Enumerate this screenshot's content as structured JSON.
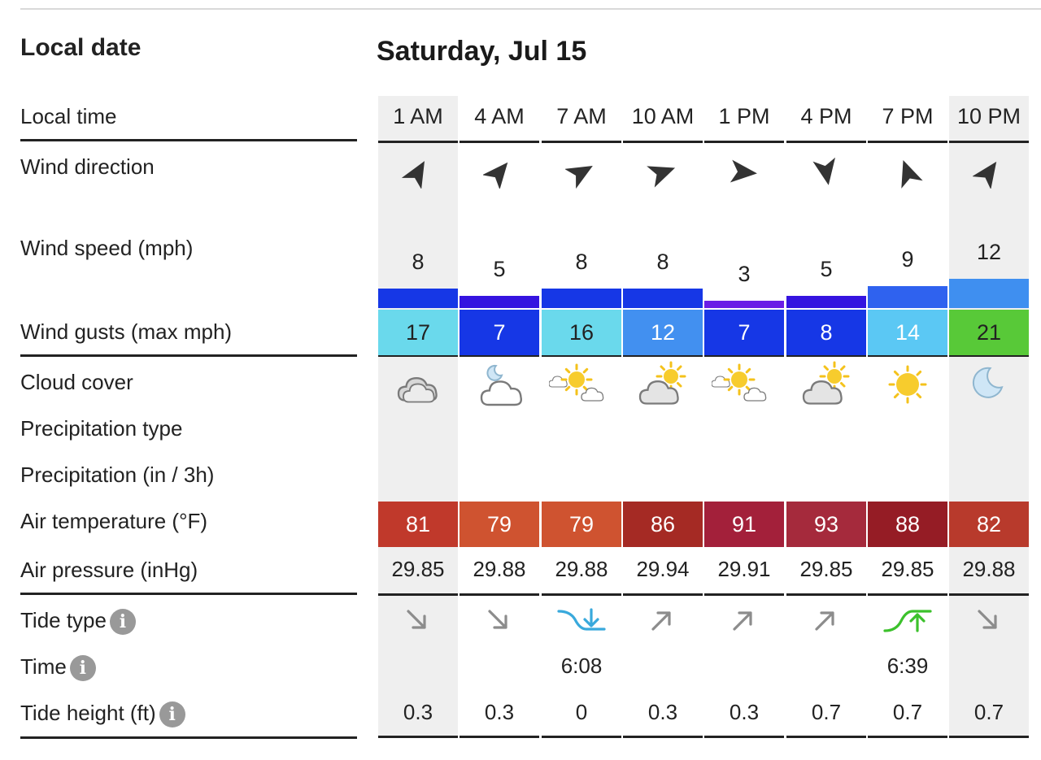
{
  "labels": {
    "local_date": "Local date",
    "local_time": "Local time",
    "wind_direction": "Wind direction",
    "wind_speed": "Wind speed (mph)",
    "wind_gusts": "Wind gusts (max mph)",
    "cloud_cover": "Cloud cover",
    "precipitation_type": "Precipitation type",
    "precipitation": "Precipitation (in / 3h)",
    "air_temperature": "Air temperature (°F)",
    "air_pressure": "Air pressure (inHg)",
    "tide_type": "Tide type",
    "tide_time": "Time",
    "tide_height": "Tide height (ft)"
  },
  "date": "Saturday, Jul 15",
  "columns": [
    {
      "time": "1 AM",
      "wind_dir_deg": 30,
      "wind_speed": "8",
      "gust": "17",
      "gust_color": "#6ad9ec",
      "cloud": "cloudy",
      "temp": "81",
      "temp_color": "#c0392b",
      "pressure": "29.85",
      "tide_type": "falling",
      "tide_time": "",
      "tide_height": "0.3",
      "shaded": true
    },
    {
      "time": "4 AM",
      "wind_dir_deg": 40,
      "wind_speed": "5",
      "gust": "7",
      "gust_color": "#1637e6",
      "cloud": "night-partly-cloudy",
      "temp": "79",
      "temp_color": "#cf5330",
      "pressure": "29.88",
      "tide_type": "falling",
      "tide_time": "",
      "tide_height": "0.3",
      "shaded": false
    },
    {
      "time": "7 AM",
      "wind_dir_deg": 60,
      "wind_speed": "8",
      "gust": "16",
      "gust_color": "#6ad9ec",
      "cloud": "mostly-sunny",
      "temp": "79",
      "temp_color": "#cf5330",
      "pressure": "29.88",
      "tide_type": "low",
      "tide_time": "6:08",
      "tide_height": "0",
      "shaded": false
    },
    {
      "time": "10 AM",
      "wind_dir_deg": 70,
      "wind_speed": "8",
      "gust": "12",
      "gust_color": "#4290f0",
      "cloud": "partly-cloudy",
      "temp": "86",
      "temp_color": "#a52a24",
      "pressure": "29.94",
      "tide_type": "rising",
      "tide_time": "",
      "tide_height": "0.3",
      "shaded": false
    },
    {
      "time": "1 PM",
      "wind_dir_deg": 95,
      "wind_speed": "3",
      "gust": "7",
      "gust_color": "#1637e6",
      "cloud": "mostly-sunny",
      "temp": "91",
      "temp_color": "#a3203a",
      "pressure": "29.91",
      "tide_type": "rising",
      "tide_time": "",
      "tide_height": "0.3",
      "shaded": false
    },
    {
      "time": "4 PM",
      "wind_dir_deg": 170,
      "wind_speed": "5",
      "gust": "8",
      "gust_color": "#1637e6",
      "cloud": "partly-cloudy",
      "temp": "93",
      "temp_color": "#a52a3c",
      "pressure": "29.85",
      "tide_type": "rising",
      "tide_time": "",
      "tide_height": "0.7",
      "shaded": false
    },
    {
      "time": "7 PM",
      "wind_dir_deg": 340,
      "wind_speed": "9",
      "gust": "14",
      "gust_color": "#5bc8f4",
      "cloud": "sunny",
      "temp": "88",
      "temp_color": "#951c25",
      "pressure": "29.85",
      "tide_type": "high",
      "tide_time": "6:39",
      "tide_height": "0.7",
      "shaded": false
    },
    {
      "time": "10 PM",
      "wind_dir_deg": 35,
      "wind_speed": "12",
      "gust": "21",
      "gust_color": "#58c938",
      "cloud": "night-clear",
      "temp": "82",
      "temp_color": "#b83a2c",
      "pressure": "29.88",
      "tide_type": "falling",
      "tide_time": "",
      "tide_height": "0.7",
      "shaded": true
    }
  ]
}
